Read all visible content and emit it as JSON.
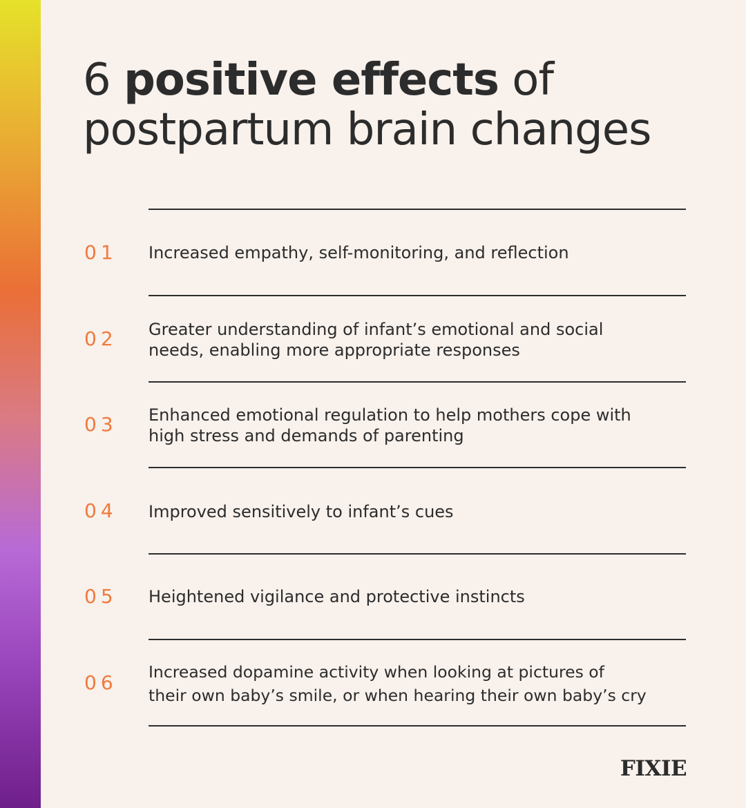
{
  "title": {
    "prefix": "6 ",
    "bold": "positive effects",
    "suffix": " of",
    "line2": "postpartum brain changes"
  },
  "items": [
    {
      "number": "01",
      "lines": [
        "Increased empathy, self-monitoring, and reflection"
      ]
    },
    {
      "number": "02",
      "lines": [
        "Greater understanding of infant’s emotional and social",
        "needs, enabling more appropriate responses"
      ]
    },
    {
      "number": "03",
      "lines": [
        "Enhanced emotional regulation to help mothers cope with",
        "high stress and demands of parenting"
      ]
    },
    {
      "number": "04",
      "lines": [
        "Improved sensitively to infant’s cues"
      ]
    },
    {
      "number": "05",
      "lines": [
        "Heightened vigilance and protective instincts"
      ]
    },
    {
      "number": "06",
      "lines": [
        "Increased dopamine activity when looking at pictures of",
        "their own baby’s smile, or when hearing their own baby’s cry"
      ]
    }
  ],
  "brand": {
    "name": "FIXIE"
  },
  "colors": {
    "background": "#f8f1ec",
    "text": "#2c2c2c",
    "accent": "#f07a3c"
  }
}
